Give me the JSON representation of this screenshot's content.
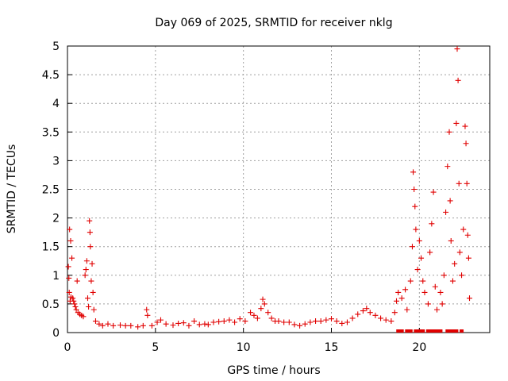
{
  "chart_data": {
    "type": "scatter",
    "title": "Day 069 of 2025, SRMTID for receiver nklg",
    "xlabel": "GPS time / hours",
    "ylabel": "SRMTID / TECUs",
    "xlim": [
      0,
      24
    ],
    "ylim": [
      0,
      5
    ],
    "xticks": [
      0,
      5,
      10,
      15,
      20
    ],
    "yticks": [
      0,
      0.5,
      1,
      1.5,
      2,
      2.5,
      3,
      3.5,
      4,
      4.5,
      5
    ],
    "xtick_labels": [
      "0",
      "5",
      "10",
      "15",
      "20"
    ],
    "ytick_labels": [
      "0",
      "0.5",
      "1",
      "1.5",
      "2",
      "2.5",
      "3",
      "3.5",
      "4",
      "4.5",
      "5"
    ],
    "grid": true,
    "marker": "+",
    "marker_color": "#e00000",
    "series": [
      {
        "name": "SRMTID",
        "points": [
          [
            0.05,
            1.15
          ],
          [
            0.08,
            0.95
          ],
          [
            0.1,
            0.7
          ],
          [
            0.12,
            1.8
          ],
          [
            0.15,
            0.55
          ],
          [
            0.18,
            1.6
          ],
          [
            0.2,
            0.62
          ],
          [
            0.25,
            1.3
          ],
          [
            0.3,
            0.6
          ],
          [
            0.35,
            0.55
          ],
          [
            0.4,
            0.5
          ],
          [
            0.45,
            0.45
          ],
          [
            0.5,
            0.4
          ],
          [
            0.55,
            0.9
          ],
          [
            0.6,
            0.35
          ],
          [
            0.7,
            0.32
          ],
          [
            0.8,
            0.3
          ],
          [
            0.9,
            0.28
          ],
          [
            1.0,
            1.0
          ],
          [
            1.05,
            1.1
          ],
          [
            1.1,
            1.25
          ],
          [
            1.15,
            0.6
          ],
          [
            1.2,
            0.45
          ],
          [
            1.25,
            1.95
          ],
          [
            1.28,
            1.75
          ],
          [
            1.3,
            1.5
          ],
          [
            1.35,
            0.9
          ],
          [
            1.4,
            1.2
          ],
          [
            1.45,
            0.7
          ],
          [
            1.5,
            0.4
          ],
          [
            1.6,
            0.2
          ],
          [
            1.8,
            0.15
          ],
          [
            2.0,
            0.12
          ],
          [
            2.3,
            0.15
          ],
          [
            2.6,
            0.12
          ],
          [
            3.0,
            0.13
          ],
          [
            3.3,
            0.12
          ],
          [
            3.6,
            0.12
          ],
          [
            4.0,
            0.1
          ],
          [
            4.3,
            0.12
          ],
          [
            4.5,
            0.4
          ],
          [
            4.55,
            0.3
          ],
          [
            4.8,
            0.12
          ],
          [
            5.1,
            0.18
          ],
          [
            5.3,
            0.22
          ],
          [
            5.6,
            0.15
          ],
          [
            6.0,
            0.13
          ],
          [
            6.3,
            0.16
          ],
          [
            6.6,
            0.17
          ],
          [
            6.9,
            0.12
          ],
          [
            7.2,
            0.2
          ],
          [
            7.5,
            0.14
          ],
          [
            7.8,
            0.15
          ],
          [
            8.0,
            0.14
          ],
          [
            8.3,
            0.18
          ],
          [
            8.6,
            0.19
          ],
          [
            8.9,
            0.2
          ],
          [
            9.2,
            0.22
          ],
          [
            9.5,
            0.18
          ],
          [
            9.8,
            0.24
          ],
          [
            10.1,
            0.2
          ],
          [
            10.4,
            0.35
          ],
          [
            10.6,
            0.3
          ],
          [
            10.8,
            0.25
          ],
          [
            11.0,
            0.42
          ],
          [
            11.1,
            0.58
          ],
          [
            11.2,
            0.5
          ],
          [
            11.4,
            0.35
          ],
          [
            11.6,
            0.25
          ],
          [
            11.8,
            0.2
          ],
          [
            12.0,
            0.2
          ],
          [
            12.3,
            0.18
          ],
          [
            12.6,
            0.18
          ],
          [
            12.9,
            0.14
          ],
          [
            13.2,
            0.12
          ],
          [
            13.5,
            0.15
          ],
          [
            13.8,
            0.18
          ],
          [
            14.1,
            0.2
          ],
          [
            14.4,
            0.2
          ],
          [
            14.7,
            0.22
          ],
          [
            15.0,
            0.24
          ],
          [
            15.3,
            0.2
          ],
          [
            15.6,
            0.16
          ],
          [
            15.9,
            0.18
          ],
          [
            16.2,
            0.25
          ],
          [
            16.5,
            0.32
          ],
          [
            16.8,
            0.38
          ],
          [
            17.0,
            0.42
          ],
          [
            17.2,
            0.35
          ],
          [
            17.5,
            0.3
          ],
          [
            17.8,
            0.25
          ],
          [
            18.1,
            0.22
          ],
          [
            18.4,
            0.2
          ],
          [
            18.6,
            0.35
          ],
          [
            18.7,
            0.55
          ],
          [
            18.8,
            0.7
          ],
          [
            19.0,
            0.6
          ],
          [
            19.2,
            0.75
          ],
          [
            19.3,
            0.4
          ],
          [
            19.5,
            0.9
          ],
          [
            19.6,
            1.5
          ],
          [
            19.65,
            2.8
          ],
          [
            19.7,
            2.5
          ],
          [
            19.75,
            2.2
          ],
          [
            19.8,
            1.8
          ],
          [
            19.9,
            1.1
          ],
          [
            20.0,
            1.6
          ],
          [
            20.1,
            1.3
          ],
          [
            20.2,
            0.9
          ],
          [
            20.3,
            0.7
          ],
          [
            20.5,
            0.5
          ],
          [
            20.6,
            1.4
          ],
          [
            20.7,
            1.9
          ],
          [
            20.8,
            2.45
          ],
          [
            20.9,
            0.8
          ],
          [
            21.0,
            0.4
          ],
          [
            21.2,
            0.7
          ],
          [
            21.3,
            0.5
          ],
          [
            21.4,
            1.0
          ],
          [
            21.5,
            2.1
          ],
          [
            21.6,
            2.9
          ],
          [
            21.7,
            3.5
          ],
          [
            21.75,
            2.3
          ],
          [
            21.8,
            1.6
          ],
          [
            21.9,
            0.9
          ],
          [
            22.0,
            1.2
          ],
          [
            22.1,
            3.65
          ],
          [
            22.15,
            4.95
          ],
          [
            22.2,
            4.4
          ],
          [
            22.25,
            2.6
          ],
          [
            22.3,
            1.4
          ],
          [
            22.4,
            1.0
          ],
          [
            22.5,
            1.8
          ],
          [
            22.6,
            3.6
          ],
          [
            22.65,
            3.3
          ],
          [
            22.7,
            2.6
          ],
          [
            22.75,
            1.7
          ],
          [
            22.8,
            1.3
          ],
          [
            22.85,
            0.6
          ]
        ]
      }
    ],
    "zero_markers_x": [
      18.8,
      19.0,
      19.3,
      19.5,
      19.8,
      20.0,
      20.2,
      20.5,
      20.7,
      20.8,
      20.9,
      21.0,
      21.1,
      21.2,
      21.6,
      21.7,
      21.9,
      22.0,
      22.1,
      22.4
    ]
  }
}
